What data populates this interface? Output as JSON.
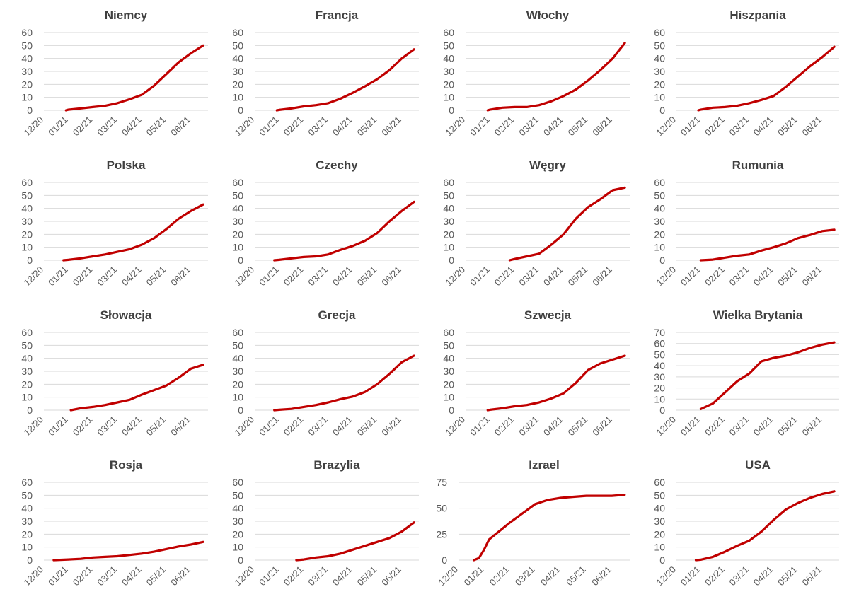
{
  "colors": {
    "line": "#C00000",
    "grid": "#D9D9D9",
    "text": "#595959",
    "title": "#404040"
  },
  "x_tick_labels": [
    "12/20",
    "01/21",
    "02/21",
    "03/21",
    "04/21",
    "05/21",
    "06/21"
  ],
  "chart_data": [
    {
      "type": "line",
      "title": "Niemcy",
      "ylim": [
        0,
        60
      ],
      "yticks": [
        0,
        10,
        20,
        30,
        40,
        50,
        60
      ],
      "series": [
        {
          "x": [
            0.9,
            1,
            1.5,
            2,
            2.5,
            3,
            3.5,
            4,
            4.5,
            5,
            5.5,
            6,
            6.5
          ],
          "y": [
            0,
            0.5,
            1.5,
            2.5,
            3.5,
            5.5,
            8.5,
            12,
            19,
            28,
            37,
            44,
            50
          ]
        }
      ]
    },
    {
      "type": "line",
      "title": "Francja",
      "ylim": [
        0,
        60
      ],
      "yticks": [
        0,
        10,
        20,
        30,
        40,
        50,
        60
      ],
      "series": [
        {
          "x": [
            0.9,
            1,
            1.5,
            2,
            2.5,
            3,
            3.5,
            4,
            4.5,
            5,
            5.5,
            6,
            6.5
          ],
          "y": [
            0,
            0.3,
            1.5,
            3,
            4,
            5.5,
            9,
            13.5,
            18.5,
            24,
            31,
            40,
            47
          ]
        }
      ]
    },
    {
      "type": "line",
      "title": "Włochy",
      "ylim": [
        0,
        60
      ],
      "yticks": [
        0,
        10,
        20,
        30,
        40,
        50,
        60
      ],
      "series": [
        {
          "x": [
            0.9,
            1,
            1.5,
            2,
            2.5,
            3,
            3.5,
            4,
            4.5,
            5,
            5.5,
            6,
            6.5
          ],
          "y": [
            0,
            0.5,
            2,
            2.5,
            2.5,
            4,
            7,
            11,
            16,
            23,
            31,
            40,
            52
          ]
        }
      ]
    },
    {
      "type": "line",
      "title": "Hiszpania",
      "ylim": [
        0,
        60
      ],
      "yticks": [
        0,
        10,
        20,
        30,
        40,
        50,
        60
      ],
      "series": [
        {
          "x": [
            0.9,
            1,
            1.5,
            2,
            2.5,
            3,
            3.5,
            4,
            4.5,
            5,
            5.5,
            6,
            6.5
          ],
          "y": [
            0,
            0.5,
            2,
            2.5,
            3.5,
            5.5,
            8,
            11,
            18,
            26,
            34,
            41,
            49
          ]
        }
      ]
    },
    {
      "type": "line",
      "title": "Polska",
      "ylim": [
        0,
        60
      ],
      "yticks": [
        0,
        10,
        20,
        30,
        40,
        50,
        60
      ],
      "series": [
        {
          "x": [
            0.8,
            1,
            1.5,
            2,
            2.5,
            3,
            3.5,
            4,
            4.5,
            5,
            5.5,
            6,
            6.5
          ],
          "y": [
            0,
            0.3,
            1.5,
            3,
            4.5,
            6.5,
            8.5,
            12,
            17,
            24,
            32,
            38,
            43
          ]
        }
      ]
    },
    {
      "type": "line",
      "title": "Czechy",
      "ylim": [
        0,
        60
      ],
      "yticks": [
        0,
        10,
        20,
        30,
        40,
        50,
        60
      ],
      "series": [
        {
          "x": [
            0.8,
            1,
            1.5,
            2,
            2.5,
            3,
            3.5,
            4,
            4.5,
            5,
            5.5,
            6,
            6.5
          ],
          "y": [
            0,
            0.3,
            1.5,
            2.5,
            3,
            4.5,
            8,
            11,
            15,
            21,
            30,
            38,
            45
          ]
        }
      ]
    },
    {
      "type": "line",
      "title": "Węgry",
      "ylim": [
        0,
        60
      ],
      "yticks": [
        0,
        10,
        20,
        30,
        40,
        50,
        60
      ],
      "series": [
        {
          "x": [
            1.8,
            2,
            2.5,
            3,
            3.5,
            4,
            4.5,
            5,
            5.5,
            6,
            6.5
          ],
          "y": [
            0,
            1,
            3,
            5,
            12,
            20,
            32,
            41,
            47,
            54,
            56
          ]
        }
      ]
    },
    {
      "type": "line",
      "title": "Rumunia",
      "ylim": [
        0,
        60
      ],
      "yticks": [
        0,
        10,
        20,
        30,
        40,
        50,
        60
      ],
      "series": [
        {
          "x": [
            1,
            1.5,
            2,
            2.5,
            3,
            3.5,
            4,
            4.5,
            5,
            5.5,
            6,
            6.5
          ],
          "y": [
            0,
            0.5,
            2,
            3.5,
            4.5,
            7.5,
            10,
            13,
            17,
            19.5,
            22.5,
            23.5
          ]
        }
      ]
    },
    {
      "type": "line",
      "title": "Słowacja",
      "ylim": [
        0,
        60
      ],
      "yticks": [
        0,
        10,
        20,
        30,
        40,
        50,
        60
      ],
      "series": [
        {
          "x": [
            1.1,
            1.5,
            2,
            2.5,
            3,
            3.5,
            4,
            4.5,
            5,
            5.5,
            6,
            6.5
          ],
          "y": [
            0,
            1.5,
            2.5,
            4,
            6,
            8,
            12,
            15.5,
            19,
            25,
            32,
            35
          ]
        }
      ]
    },
    {
      "type": "line",
      "title": "Grecja",
      "ylim": [
        0,
        60
      ],
      "yticks": [
        0,
        10,
        20,
        30,
        40,
        50,
        60
      ],
      "series": [
        {
          "x": [
            0.8,
            1,
            1.5,
            2,
            2.5,
            3,
            3.5,
            4,
            4.5,
            5,
            5.5,
            6,
            6.5
          ],
          "y": [
            0,
            0.3,
            1,
            2.5,
            4,
            6,
            8.5,
            10.5,
            14,
            20,
            28,
            37,
            42
          ]
        }
      ]
    },
    {
      "type": "line",
      "title": "Szwecja",
      "ylim": [
        0,
        60
      ],
      "yticks": [
        0,
        10,
        20,
        30,
        40,
        50,
        60
      ],
      "series": [
        {
          "x": [
            0.9,
            1,
            1.5,
            2,
            2.5,
            3,
            3.5,
            4,
            4.5,
            5,
            5.5,
            6,
            6.5
          ],
          "y": [
            0,
            0.3,
            1.5,
            3,
            4,
            6,
            9,
            13,
            21,
            31,
            36,
            39,
            42
          ]
        }
      ]
    },
    {
      "type": "line",
      "title": "Wielka Brytania",
      "ylim": [
        0,
        70
      ],
      "yticks": [
        0,
        10,
        20,
        30,
        40,
        50,
        60,
        70
      ],
      "series": [
        {
          "x": [
            1,
            1.5,
            2,
            2.5,
            3,
            3.5,
            4,
            4.5,
            5,
            5.5,
            6,
            6.5
          ],
          "y": [
            1,
            6,
            16,
            26,
            33,
            44,
            47,
            49,
            52,
            56,
            59,
            61
          ]
        }
      ]
    },
    {
      "type": "line",
      "title": "Rosja",
      "ylim": [
        0,
        60
      ],
      "yticks": [
        0,
        10,
        20,
        30,
        40,
        50,
        60
      ],
      "series": [
        {
          "x": [
            0.4,
            1,
            1.5,
            2,
            2.5,
            3,
            3.5,
            4,
            4.5,
            5,
            5.5,
            6,
            6.5
          ],
          "y": [
            0,
            0.5,
            1,
            2,
            2.5,
            3,
            4,
            5,
            6.5,
            8.5,
            10.5,
            12,
            14
          ]
        }
      ]
    },
    {
      "type": "line",
      "title": "Brazylia",
      "ylim": [
        0,
        60
      ],
      "yticks": [
        0,
        10,
        20,
        30,
        40,
        50,
        60
      ],
      "series": [
        {
          "x": [
            1.7,
            2,
            2.5,
            3,
            3.5,
            4,
            4.5,
            5,
            5.5,
            6,
            6.5
          ],
          "y": [
            0,
            0.5,
            2,
            3,
            5,
            8,
            11,
            14,
            17,
            22,
            29
          ]
        }
      ]
    },
    {
      "type": "line",
      "title": "Izrael",
      "ylim": [
        0,
        75
      ],
      "yticks": [
        0,
        25,
        50,
        75
      ],
      "series": [
        {
          "x": [
            0.6,
            0.8,
            1,
            1.2,
            1.5,
            2,
            2.5,
            3,
            3.5,
            4,
            4.5,
            5,
            5.5,
            6,
            6.5
          ],
          "y": [
            0,
            2,
            10,
            20,
            26,
            36,
            45,
            54,
            58,
            60,
            61,
            62,
            62,
            62,
            63
          ]
        }
      ]
    },
    {
      "type": "line",
      "title": "USA",
      "ylim": [
        0,
        60
      ],
      "yticks": [
        0,
        10,
        20,
        30,
        40,
        50,
        60
      ],
      "series": [
        {
          "x": [
            0.8,
            1,
            1.5,
            2,
            2.5,
            3,
            3.5,
            4,
            4.5,
            5,
            5.5,
            6,
            6.5
          ],
          "y": [
            0,
            0.3,
            2.5,
            6.5,
            11,
            15,
            22,
            31,
            39,
            44,
            48,
            51,
            53
          ]
        }
      ]
    }
  ]
}
